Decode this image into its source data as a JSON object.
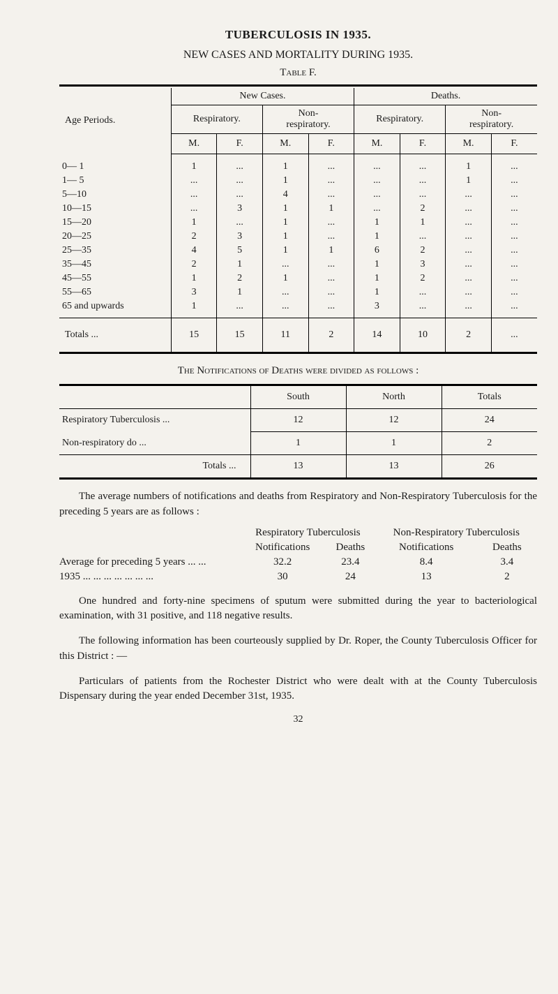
{
  "title": "TUBERCULOSIS IN 1935.",
  "subtitle": "NEW CASES AND MORTALITY DURING 1935.",
  "table_label": "Table F.",
  "tableF": {
    "row_header": "Age Periods.",
    "span_new": "New Cases.",
    "span_deaths": "Deaths.",
    "sub_resp": "Respiratory.",
    "sub_non": "Non-\nrespiratory.",
    "M": "M.",
    "F": "F.",
    "rows": [
      {
        "label": "0— 1",
        "cells": [
          "1",
          "...",
          "1",
          "...",
          "...",
          "...",
          "1",
          "..."
        ]
      },
      {
        "label": "1— 5",
        "cells": [
          "...",
          "...",
          "1",
          "...",
          "...",
          "...",
          "1",
          "..."
        ]
      },
      {
        "label": "5—10",
        "cells": [
          "...",
          "...",
          "4",
          "...",
          "...",
          "...",
          "...",
          "..."
        ]
      },
      {
        "label": "10—15",
        "cells": [
          "...",
          "3",
          "1",
          "1",
          "...",
          "2",
          "...",
          "..."
        ]
      },
      {
        "label": "15—20",
        "cells": [
          "1",
          "...",
          "1",
          "...",
          "1",
          "1",
          "...",
          "..."
        ]
      },
      {
        "label": "20—25",
        "cells": [
          "2",
          "3",
          "1",
          "...",
          "1",
          "...",
          "...",
          "..."
        ]
      },
      {
        "label": "25—35",
        "cells": [
          "4",
          "5",
          "1",
          "1",
          "6",
          "2",
          "...",
          "..."
        ]
      },
      {
        "label": "35—45",
        "cells": [
          "2",
          "1",
          "...",
          "...",
          "1",
          "3",
          "...",
          "..."
        ]
      },
      {
        "label": "45—55",
        "cells": [
          "1",
          "2",
          "1",
          "...",
          "1",
          "2",
          "...",
          "..."
        ]
      },
      {
        "label": "55—65",
        "cells": [
          "3",
          "1",
          "...",
          "...",
          "1",
          "...",
          "...",
          "..."
        ]
      },
      {
        "label": "65 and upwards",
        "cells": [
          "1",
          "...",
          "...",
          "...",
          "3",
          "...",
          "...",
          "..."
        ]
      }
    ],
    "totals_label": "Totals  ...",
    "totals": [
      "15",
      "15",
      "11",
      "2",
      "14",
      "10",
      "2",
      "..."
    ]
  },
  "notif_heading": "The Notifications of Deaths were divided as follows :",
  "tableN": {
    "col_south": "South",
    "col_north": "North",
    "col_totals": "Totals",
    "rows": [
      {
        "label": "Respiratory Tuberculosis    ...",
        "s": "12",
        "n": "12",
        "t": "24"
      },
      {
        "label": "Non-respiratory   do            ...",
        "s": "1",
        "n": "1",
        "t": "2"
      }
    ],
    "totals_label": "Totals   ...",
    "totals": {
      "s": "13",
      "n": "13",
      "t": "26"
    }
  },
  "para_intro": "The average numbers of notifications and deaths from Respiratory and Non-Respiratory Tuberculosis for the preceding 5 years are as follows :",
  "avgs": {
    "h_resp": "Respiratory Tuberculosis",
    "h_non": "Non-Respiratory Tuberculosis",
    "h_not": "Notifications",
    "h_dea": "Deaths",
    "r1_label": "Average for preceding 5 years ...  ...",
    "r1": [
      "32.2",
      "23.4",
      "8.4",
      "3.4"
    ],
    "r2_label": "1935       ...  ...  ...  ...  ...  ...  ...",
    "r2": [
      "30",
      "24",
      "13",
      "2"
    ]
  },
  "para_1": "One hundred and forty-nine specimens of sputum were submitted during the year to bacteriological examination, with 31 positive, and 118 negative results.",
  "para_2": "The following information has been courteously supplied by Dr. Roper, the County Tuberculosis Officer for this District : —",
  "para_3": "Particulars of patients from the Rochester District who were dealt with at the County Tuberculosis Dispensary during the year ended December 31st, 1935.",
  "pagenum": "32"
}
